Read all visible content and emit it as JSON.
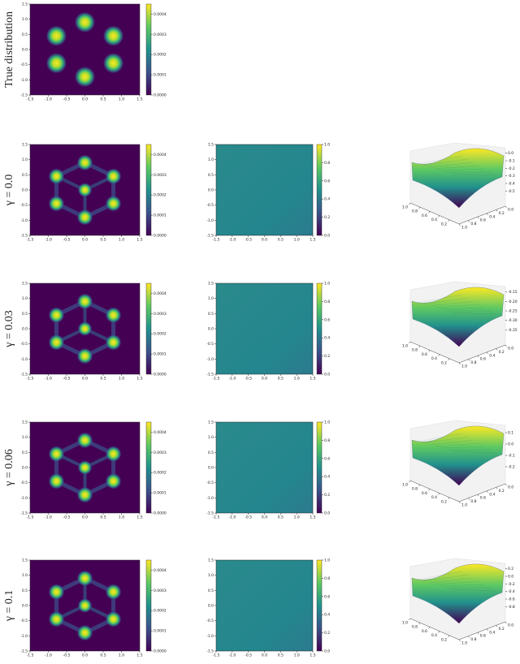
{
  "chart_data": [
    {
      "type": "heatmap",
      "ylabel": "True distribution",
      "xlim": [
        -1.5,
        1.5
      ],
      "ylim": [
        -1.5,
        1.5
      ],
      "xticks": [
        -1.5,
        {
          "value": -1,
          "label": "-1.0"
        },
        -0.5,
        {
          "value": 0,
          "label": "0.0"
        },
        0.5,
        {
          "value": 1,
          "label": "1.0"
        },
        1.5
      ],
      "yticks": [
        -1.5,
        {
          "value": -1,
          "label": "-1.0"
        },
        -0.5,
        {
          "value": 0,
          "label": "0.0"
        },
        0.5,
        {
          "value": 1,
          "label": "1.0"
        },
        1.5
      ],
      "clim": [
        0,
        0.00045
      ],
      "cticks": [
        {
          "value": 0,
          "label": "0.0000"
        },
        0.0001,
        0.0002,
        0.0003,
        0.0004
      ]
    },
    {
      "type": "heatmap",
      "ylabel": "γ = 0.0",
      "xlim": [
        -1.5,
        1.5
      ],
      "ylim": [
        -1.5,
        1.5
      ],
      "xticks": [
        -1.5,
        {
          "value": -1,
          "label": "-1.0"
        },
        -0.5,
        {
          "value": 0,
          "label": "0.0"
        },
        0.5,
        {
          "value": 1,
          "label": "1.0"
        },
        1.5
      ],
      "yticks": [
        -1.5,
        {
          "value": -1,
          "label": "-1.0"
        },
        -0.5,
        {
          "value": 0,
          "label": "0.0"
        },
        0.5,
        {
          "value": 1,
          "label": "1.0"
        },
        1.5
      ],
      "clim": [
        0,
        0.00045
      ],
      "cticks": [
        {
          "value": 0,
          "label": "0.0000"
        },
        0.0001,
        0.0002,
        0.0003,
        0.0004
      ]
    },
    {
      "type": "field",
      "xlim": [
        -1.5,
        1.5
      ],
      "ylim": [
        -1.5,
        1.5
      ],
      "xticks": [
        -1.5,
        {
          "value": -1,
          "label": "-1.0"
        },
        -0.5,
        {
          "value": 0,
          "label": "0.0"
        },
        0.5,
        {
          "value": 1,
          "label": "1.0"
        },
        1.5
      ],
      "yticks": [
        -1.5,
        {
          "value": -1,
          "label": "-1.0"
        },
        -0.5,
        {
          "value": 0,
          "label": "0.0"
        },
        0.5,
        {
          "value": 1,
          "label": "1.0"
        },
        1.5
      ],
      "clim": [
        0,
        1
      ],
      "cticks": [
        {
          "value": 0,
          "label": "0.0"
        },
        0.2,
        0.4,
        0.6,
        0.8,
        {
          "value": 1,
          "label": "1.0"
        }
      ]
    },
    {
      "type": "surface",
      "xlim": [
        0,
        1
      ],
      "xticks": [
        {
          "value": 1,
          "label": "1.0"
        },
        0.8,
        0.6,
        0.4,
        0.2
      ],
      "ylim": [
        0,
        1
      ],
      "yticks": [
        {
          "value": 0,
          "label": "0.0"
        },
        0.2,
        0.4,
        0.6,
        0.8,
        {
          "value": 1,
          "label": "1.0"
        }
      ],
      "zlim": [
        -0.55,
        0.05
      ],
      "zticks": [
        {
          "value": 0,
          "label": "0.0"
        },
        -0.1,
        -0.2,
        -0.3,
        -0.4,
        -0.5
      ]
    },
    {
      "type": "heatmap",
      "ylabel": "γ = 0.03",
      "xlim": [
        -1.5,
        1.5
      ],
      "ylim": [
        -1.5,
        1.5
      ],
      "xticks": [
        -1.5,
        {
          "value": -1,
          "label": "-1.0"
        },
        -0.5,
        {
          "value": 0,
          "label": "0.0"
        },
        0.5,
        {
          "value": 1,
          "label": "1.0"
        },
        1.5
      ],
      "yticks": [
        -1.5,
        {
          "value": -1,
          "label": "-1.0"
        },
        -0.5,
        {
          "value": 0,
          "label": "0.0"
        },
        0.5,
        {
          "value": 1,
          "label": "1.0"
        },
        1.5
      ],
      "clim": [
        0,
        0.00045
      ],
      "cticks": [
        {
          "value": 0,
          "label": "0.0000"
        },
        0.0001,
        0.0002,
        0.0003,
        0.0004
      ]
    },
    {
      "type": "field",
      "xlim": [
        -1.5,
        1.5
      ],
      "ylim": [
        -1.5,
        1.5
      ],
      "xticks": [
        -1.5,
        {
          "value": -1,
          "label": "-1.0"
        },
        -0.5,
        {
          "value": 0,
          "label": "0.0"
        },
        0.5,
        {
          "value": 1,
          "label": "1.0"
        },
        1.5
      ],
      "yticks": [
        -1.5,
        {
          "value": -1,
          "label": "-1.0"
        },
        -0.5,
        {
          "value": 0,
          "label": "0.0"
        },
        0.5,
        {
          "value": 1,
          "label": "1.0"
        },
        1.5
      ],
      "clim": [
        0,
        1
      ],
      "cticks": [
        {
          "value": 0,
          "label": "0.0"
        },
        0.2,
        0.4,
        0.6,
        0.8,
        {
          "value": 1,
          "label": "1.0"
        }
      ]
    },
    {
      "type": "surface",
      "xlim": [
        0,
        1
      ],
      "xticks": [
        {
          "value": 1,
          "label": "1.0"
        },
        0.8,
        0.6,
        0.4,
        0.2
      ],
      "ylim": [
        0,
        1
      ],
      "yticks": [
        {
          "value": 0,
          "label": "0.0"
        },
        0.2,
        0.4,
        0.6,
        0.8,
        {
          "value": 1,
          "label": "1.0"
        }
      ],
      "zlim": [
        -0.37,
        -0.13
      ],
      "zticks": [
        -0.15,
        {
          "value": -0.2,
          "label": "-0.20"
        },
        -0.25,
        {
          "value": -0.3,
          "label": "-0.30"
        },
        -0.35
      ]
    },
    {
      "type": "heatmap",
      "ylabel": "γ = 0.06",
      "xlim": [
        -1.5,
        1.5
      ],
      "ylim": [
        -1.5,
        1.5
      ],
      "xticks": [
        -1.5,
        {
          "value": -1,
          "label": "-1.0"
        },
        -0.5,
        {
          "value": 0,
          "label": "0.0"
        },
        0.5,
        {
          "value": 1,
          "label": "1.0"
        },
        1.5
      ],
      "yticks": [
        -1.5,
        {
          "value": -1,
          "label": "-1.0"
        },
        -0.5,
        {
          "value": 0,
          "label": "0.0"
        },
        0.5,
        {
          "value": 1,
          "label": "1.0"
        },
        1.5
      ],
      "clim": [
        0,
        0.00045
      ],
      "cticks": [
        {
          "value": 0,
          "label": "0.0000"
        },
        0.0001,
        0.0002,
        0.0003,
        0.0004
      ]
    },
    {
      "type": "field",
      "xlim": [
        -1.5,
        1.5
      ],
      "ylim": [
        -1.5,
        1.5
      ],
      "xticks": [
        -1.5,
        {
          "value": -1,
          "label": "-1.0"
        },
        -0.5,
        {
          "value": 0,
          "label": "0.0"
        },
        0.5,
        {
          "value": 1,
          "label": "1.0"
        },
        1.5
      ],
      "yticks": [
        -1.5,
        {
          "value": -1,
          "label": "-1.0"
        },
        -0.5,
        {
          "value": 0,
          "label": "0.0"
        },
        0.5,
        {
          "value": 1,
          "label": "1.0"
        },
        1.5
      ],
      "clim": [
        0,
        1
      ],
      "cticks": [
        {
          "value": 0,
          "label": "0.0"
        },
        0.2,
        0.4,
        0.6,
        0.8,
        {
          "value": 1,
          "label": "1.0"
        }
      ]
    },
    {
      "type": "surface",
      "xlim": [
        0,
        1
      ],
      "xticks": [
        {
          "value": 1,
          "label": "1.0"
        },
        0.8,
        0.6,
        0.4,
        0.2
      ],
      "ylim": [
        0,
        1
      ],
      "yticks": [
        {
          "value": 0,
          "label": "0.0"
        },
        0.2,
        0.4,
        0.6,
        0.8,
        {
          "value": 1,
          "label": "1.0"
        }
      ],
      "zlim": [
        -0.25,
        0.15
      ],
      "zticks": [
        0.1,
        {
          "value": 0,
          "label": "0.0"
        },
        -0.1,
        -0.2
      ]
    },
    {
      "type": "heatmap",
      "ylabel": "γ = 0.1",
      "xlim": [
        -1.5,
        1.5
      ],
      "ylim": [
        -1.5,
        1.5
      ],
      "xticks": [
        -1.5,
        {
          "value": -1,
          "label": "-1.0"
        },
        -0.5,
        {
          "value": 0,
          "label": "0.0"
        },
        0.5,
        {
          "value": 1,
          "label": "1.0"
        },
        1.5
      ],
      "yticks": [
        -1.5,
        {
          "value": -1,
          "label": "-1.0"
        },
        -0.5,
        {
          "value": 0,
          "label": "0.0"
        },
        0.5,
        {
          "value": 1,
          "label": "1.0"
        },
        1.5
      ],
      "clim": [
        0,
        0.00045
      ],
      "cticks": [
        {
          "value": 0,
          "label": "0.0000"
        },
        0.0001,
        0.0002,
        0.0003,
        0.0004
      ]
    },
    {
      "type": "field",
      "xlim": [
        -1.5,
        1.5
      ],
      "ylim": [
        -1.5,
        1.5
      ],
      "xticks": [
        -1.5,
        {
          "value": -1,
          "label": "-1.0"
        },
        -0.5,
        {
          "value": 0,
          "label": "0.0"
        },
        0.5,
        {
          "value": 1,
          "label": "1.0"
        },
        1.5
      ],
      "yticks": [
        -1.5,
        {
          "value": -1,
          "label": "-1.0"
        },
        -0.5,
        {
          "value": 0,
          "label": "0.0"
        },
        0.5,
        {
          "value": 1,
          "label": "1.0"
        },
        1.5
      ],
      "clim": [
        0,
        1
      ],
      "cticks": [
        {
          "value": 0,
          "label": "0.0"
        },
        0.2,
        0.4,
        0.6,
        0.8,
        {
          "value": 1,
          "label": "1.0"
        }
      ]
    },
    {
      "type": "surface",
      "xlim": [
        0,
        1
      ],
      "xticks": [
        {
          "value": 1,
          "label": "1.0"
        },
        0.8,
        0.6,
        0.4,
        0.2
      ],
      "ylim": [
        0,
        1
      ],
      "yticks": [
        {
          "value": 0,
          "label": "0.0"
        },
        0.2,
        0.4,
        0.6,
        0.8,
        {
          "value": 1,
          "label": "1.0"
        }
      ],
      "zlim": [
        -0.9,
        0.3
      ],
      "zticks": [
        0.2,
        {
          "value": 0,
          "label": "0.0"
        },
        -0.2,
        -0.4,
        -0.6,
        -0.8
      ]
    }
  ]
}
